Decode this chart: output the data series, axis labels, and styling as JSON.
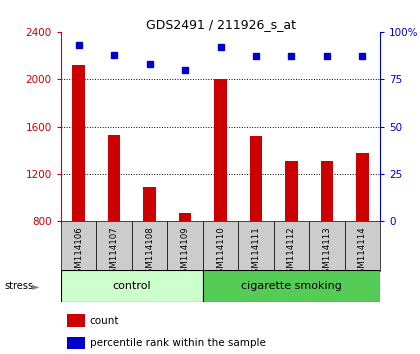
{
  "title": "GDS2491 / 211926_s_at",
  "samples": [
    "GSM114106",
    "GSM114107",
    "GSM114108",
    "GSM114109",
    "GSM114110",
    "GSM114111",
    "GSM114112",
    "GSM114113",
    "GSM114114"
  ],
  "counts": [
    2120,
    1530,
    1090,
    870,
    2000,
    1520,
    1310,
    1310,
    1380
  ],
  "percentile_ranks": [
    93,
    88,
    83,
    80,
    92,
    87,
    87,
    87,
    87
  ],
  "ylim_left": [
    800,
    2400
  ],
  "ylim_right": [
    0,
    100
  ],
  "yticks_left": [
    800,
    1200,
    1600,
    2000,
    2400
  ],
  "yticks_right": [
    0,
    25,
    50,
    75,
    100
  ],
  "bar_color": "#cc0000",
  "dot_color": "#0000cc",
  "control_color": "#ccffcc",
  "smoking_color": "#55cc55",
  "label_bg_color": "#cccccc",
  "stress_label": "stress",
  "group_labels": [
    "control",
    "cigarette smoking"
  ],
  "legend_count_label": "count",
  "legend_pct_label": "percentile rank within the sample",
  "ytick_labels_right": [
    "0",
    "25",
    "50",
    "75",
    "100%"
  ]
}
